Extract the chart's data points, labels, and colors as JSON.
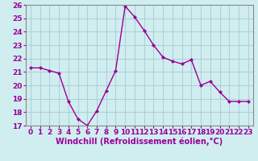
{
  "x": [
    0,
    1,
    2,
    3,
    4,
    5,
    6,
    7,
    8,
    9,
    10,
    11,
    12,
    13,
    14,
    15,
    16,
    17,
    18,
    19,
    20,
    21,
    22,
    23
  ],
  "y": [
    21.3,
    21.3,
    21.1,
    20.9,
    18.8,
    17.5,
    17.0,
    18.1,
    19.6,
    21.1,
    25.9,
    25.1,
    24.1,
    23.0,
    22.1,
    21.8,
    21.6,
    21.9,
    20.0,
    20.3,
    19.5,
    18.8,
    18.8,
    18.8
  ],
  "line_color": "#990099",
  "marker": "D",
  "marker_size": 2.0,
  "bg_color": "#d0eef0",
  "grid_color": "#b0d0d8",
  "xlabel": "Windchill (Refroidissement éolien,°C)",
  "xlim": [
    -0.5,
    23.5
  ],
  "ylim": [
    17,
    26
  ],
  "yticks": [
    17,
    18,
    19,
    20,
    21,
    22,
    23,
    24,
    25,
    26
  ],
  "xticks": [
    0,
    1,
    2,
    3,
    4,
    5,
    6,
    7,
    8,
    9,
    10,
    11,
    12,
    13,
    14,
    15,
    16,
    17,
    18,
    19,
    20,
    21,
    22,
    23
  ],
  "xlabel_fontsize": 7.0,
  "tick_fontsize": 6.5,
  "line_width": 1.0,
  "tick_color": "#990099",
  "label_color": "#990099"
}
